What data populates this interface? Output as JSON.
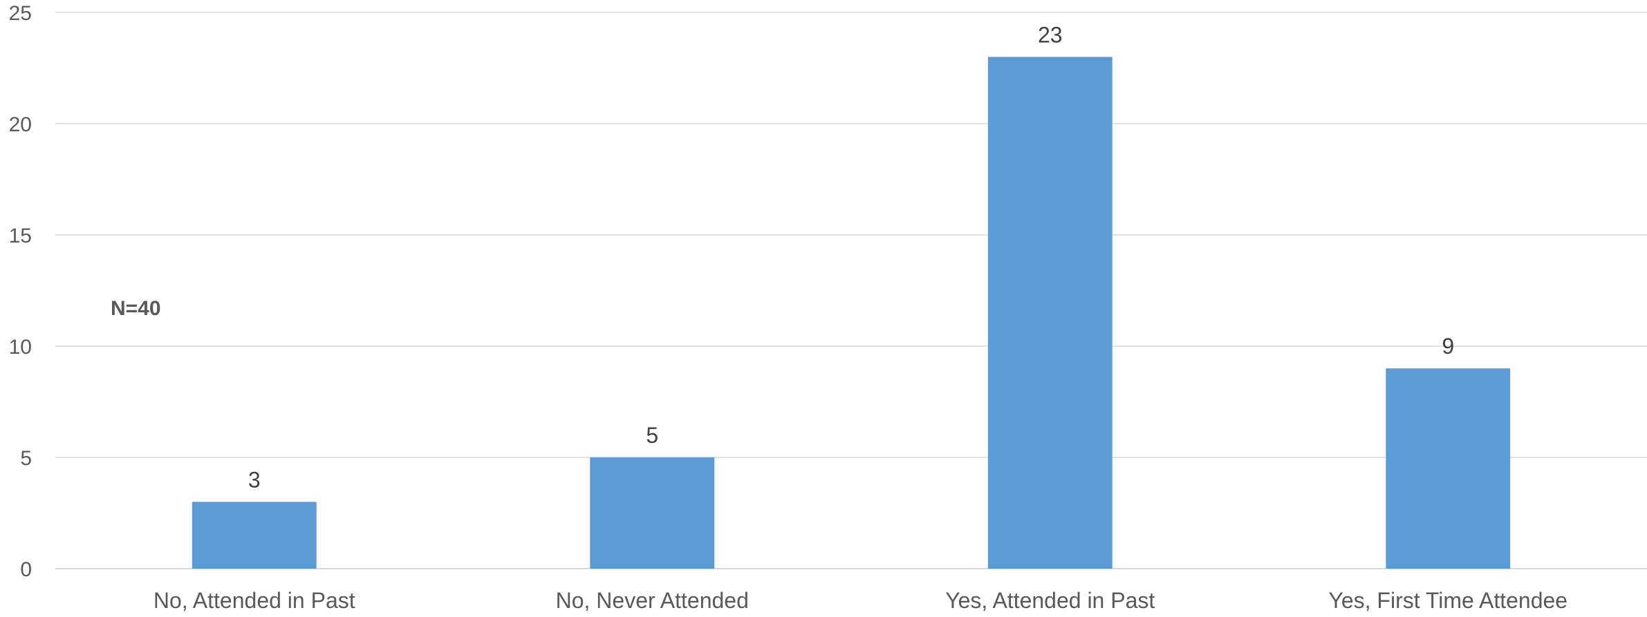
{
  "chart_data": {
    "type": "bar",
    "categories": [
      "No, Attended in Past",
      "No, Never Attended",
      "Yes, Attended in Past",
      "Yes, First Time Attendee"
    ],
    "values": [
      3,
      5,
      23,
      9
    ],
    "data_labels": [
      "3",
      "5",
      "23",
      "9"
    ],
    "yticks": [
      0,
      5,
      10,
      15,
      20,
      25
    ],
    "ylim": [
      0,
      25
    ],
    "annotation": "N=40",
    "bar_color": "#5b9bd5",
    "grid": true,
    "legend": "none"
  }
}
